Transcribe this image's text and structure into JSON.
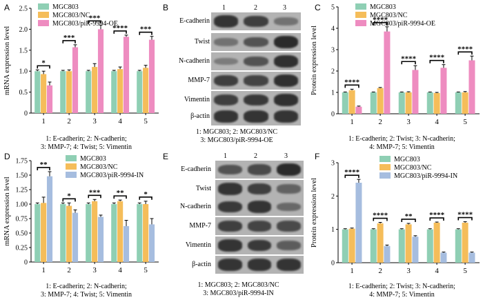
{
  "panels": {
    "A": {
      "label": "A",
      "legend": [
        "MGC803",
        "MGC803/NC",
        "MGC803/piR-9994-OE"
      ],
      "caption": [
        "1: E-cadherin; 2: N-cadherin;",
        "3: MMP-7; 4: Twist; 5: Vimentin"
      ]
    },
    "B": {
      "label": "B",
      "lanes": [
        "1",
        "2",
        "3"
      ],
      "proteins": [
        "E-cadherin",
        "Twist",
        "N-cadherin",
        "MMP-7",
        "Vimentin",
        "β-actin"
      ],
      "caption": [
        "1: MGC803; 2: MGC803/NC",
        "3: MGC803/piR-9994-OE"
      ]
    },
    "C": {
      "label": "C",
      "legend": [
        "MGC803",
        "MGC803/NC",
        "MGC803/piR-9994-OE"
      ],
      "caption": [
        "1: E-cadherin; 2: Twist; 3: N-cadherin;",
        "4: MMP-7; 5: Vimentin"
      ]
    },
    "D": {
      "label": "D",
      "legend": [
        "MGC803",
        "MGC803/NC",
        "MGC803/piR-9994-IN"
      ],
      "caption": [
        "1: E-cadherin; 2: N-cadherin;",
        "3: MMP-7; 4: Twist; 5: Vimentin"
      ]
    },
    "E": {
      "label": "E",
      "lanes": [
        "1",
        "2",
        "3"
      ],
      "proteins": [
        "E-cadherin",
        "Twist",
        "N-cadherin",
        "MMP-7",
        "Vimentin",
        "β-actin"
      ],
      "caption": [
        "1: MGC803; 2: MGC803/NC",
        "3: MGC803/piR-9994-IN"
      ]
    },
    "F": {
      "label": "F",
      "legend": [
        "MGC803",
        "MGC803/NC",
        "MGC803/piR-9994-IN"
      ],
      "caption": [
        "1: E-cadherin; 2: Twist; 3: N-cadherin;",
        "4: MMP-7; 5: Vimentin"
      ]
    }
  },
  "colors": {
    "series1": "#8fcfb4",
    "series2": "#f5bd5a",
    "series3a": "#ee8cc0",
    "series3b": "#a6bddf"
  },
  "chart_data": [
    {
      "id": "A",
      "type": "bar",
      "categories": [
        "1",
        "2",
        "3",
        "4",
        "5"
      ],
      "ylabel": "mRNA expression level",
      "ylim": [
        0,
        2.5
      ],
      "yticks": [
        "0",
        "0.5",
        "1.0",
        "1.5",
        "2.0",
        "2.5"
      ],
      "series": [
        {
          "name": "MGC803",
          "values": [
            1.0,
            1.0,
            1.0,
            1.0,
            1.0
          ],
          "errors": [
            0.03,
            0.02,
            0.02,
            0.02,
            0.02
          ]
        },
        {
          "name": "MGC803/NC",
          "values": [
            0.93,
            1.0,
            1.1,
            1.05,
            1.08
          ],
          "errors": [
            0.07,
            0.03,
            0.08,
            0.05,
            0.06
          ]
        },
        {
          "name": "MGC803/piR-9994-OE",
          "values": [
            0.66,
            1.57,
            2.0,
            1.82,
            1.75
          ],
          "errors": [
            0.08,
            0.06,
            0.1,
            0.04,
            0.08
          ]
        }
      ],
      "significance": [
        "*",
        "***",
        "***",
        "****",
        "***"
      ]
    },
    {
      "id": "C",
      "type": "bar",
      "categories": [
        "1",
        "2",
        "3",
        "4",
        "5"
      ],
      "ylabel": "Protein expression level",
      "ylim": [
        0,
        5
      ],
      "yticks": [
        "0",
        "1",
        "2",
        "3",
        "4",
        "5"
      ],
      "series": [
        {
          "name": "MGC803",
          "values": [
            1.0,
            1.0,
            1.0,
            1.0,
            1.0
          ],
          "errors": [
            0.02,
            0.02,
            0.02,
            0.02,
            0.02
          ]
        },
        {
          "name": "MGC803/NC",
          "values": [
            1.1,
            1.2,
            1.0,
            0.97,
            1.0
          ],
          "errors": [
            0.05,
            0.03,
            0.03,
            0.03,
            0.04
          ]
        },
        {
          "name": "MGC803/piR-9994-OE",
          "values": [
            0.33,
            3.85,
            2.05,
            2.15,
            2.5
          ],
          "errors": [
            0.03,
            0.22,
            0.2,
            0.15,
            0.2
          ]
        }
      ],
      "significance": [
        "****",
        "****",
        "****",
        "****",
        "****"
      ]
    },
    {
      "id": "D",
      "type": "bar",
      "categories": [
        "1",
        "2",
        "3",
        "4",
        "5"
      ],
      "ylabel": "mRNA expression level",
      "ylim": [
        0,
        1.75
      ],
      "yticks": [
        "0",
        "0.25",
        "0.50",
        "0.75",
        "1.00",
        "1.25",
        "1.50",
        "1.75"
      ],
      "series": [
        {
          "name": "MGC803",
          "values": [
            1.0,
            1.0,
            1.0,
            1.0,
            1.0
          ],
          "errors": [
            0.02,
            0.02,
            0.02,
            0.02,
            0.02
          ]
        },
        {
          "name": "MGC803/NC",
          "values": [
            1.02,
            0.97,
            1.05,
            1.05,
            1.0
          ],
          "errors": [
            0.1,
            0.05,
            0.03,
            0.02,
            0.05
          ]
        },
        {
          "name": "MGC803/piR-9994-IN",
          "values": [
            1.48,
            0.85,
            0.78,
            0.62,
            0.65
          ],
          "errors": [
            0.08,
            0.05,
            0.03,
            0.1,
            0.1
          ]
        }
      ],
      "significance": [
        "**",
        "*",
        "***",
        "**",
        "*"
      ]
    },
    {
      "id": "F",
      "type": "bar",
      "categories": [
        "1",
        "2",
        "3",
        "4",
        "5"
      ],
      "ylabel": "Protein expression level",
      "ylim": [
        0,
        3
      ],
      "yticks": [
        "0",
        "1",
        "2",
        "3"
      ],
      "series": [
        {
          "name": "MGC803",
          "values": [
            1.0,
            1.0,
            1.0,
            1.0,
            1.0
          ],
          "errors": [
            0.02,
            0.02,
            0.02,
            0.02,
            0.02
          ]
        },
        {
          "name": "MGC803/NC",
          "values": [
            1.02,
            1.18,
            1.15,
            1.2,
            1.2
          ],
          "errors": [
            0.02,
            0.03,
            0.03,
            0.02,
            0.03
          ]
        },
        {
          "name": "MGC803/piR-9994-IN",
          "values": [
            2.4,
            0.5,
            0.78,
            0.3,
            0.3
          ],
          "errors": [
            0.1,
            0.03,
            0.03,
            0.02,
            0.02
          ]
        }
      ],
      "significance": [
        "****",
        "****",
        "**",
        "****",
        "****"
      ]
    }
  ]
}
